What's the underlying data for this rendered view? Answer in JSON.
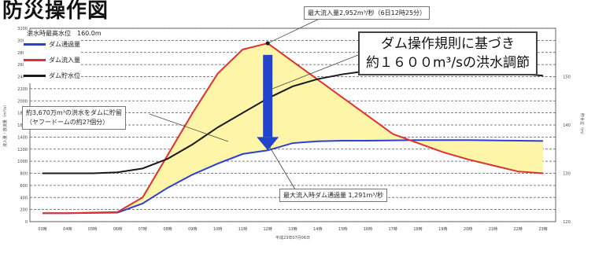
{
  "title": "防災操作図",
  "callouts": {
    "max_inflow": "最大流入量2,952m³/秒（6日12時25分）",
    "flood_level": "洪水時最高水位　160.0m",
    "storage": "約3,670万m³の洪水をダムに貯留",
    "storage_sub": "（ヤフードームの約2?個分）",
    "max_outflow": "最大流入時ダム通過量 1,291m³/秒",
    "big_box_line1": "ダム操作規則に基づき",
    "big_box_line2": "約１６００m³/sの洪水調節"
  },
  "legend": [
    {
      "label": "ダム通過量",
      "color": "#2b3fd6"
    },
    {
      "label": "ダム流入量",
      "color": "#e03030"
    },
    {
      "label": "ダム貯水位",
      "color": "#1a1a1a"
    }
  ],
  "colors": {
    "fill": "#fff5a8",
    "arrow": "#2244cc",
    "grid": "#555555"
  },
  "chart_data": {
    "type": "line",
    "x": [
      "03時",
      "04時",
      "05時",
      "06時",
      "07時",
      "08時",
      "09時",
      "10時",
      "11時",
      "12時",
      "13時",
      "14時",
      "15時",
      "16時",
      "17時",
      "18時",
      "19時",
      "20時",
      "21時",
      "22時",
      "23時"
    ],
    "xlabel": "平成23年07月06日",
    "ylabel": "流入量・放流量（m³/s）",
    "ylabel_right": "貯水位（m）",
    "ylim": [
      0,
      3200
    ],
    "ylim_right": [
      120,
      160
    ],
    "yticks": [
      0,
      200,
      400,
      600,
      800,
      1000,
      1200,
      1400,
      1600,
      1800,
      2000,
      2200,
      2400,
      2600,
      2800,
      3000,
      3200
    ],
    "yticks_right": [
      120,
      130,
      140,
      150
    ],
    "series": [
      {
        "name": "ダム通過量",
        "axis": "left",
        "values": [
          140,
          140,
          145,
          150,
          300,
          560,
          780,
          960,
          1120,
          1180,
          1300,
          1330,
          1340,
          1340,
          1345,
          1350,
          1350,
          1350,
          1345,
          1340,
          1335
        ]
      },
      {
        "name": "ダム流入量",
        "axis": "left",
        "values": [
          140,
          140,
          150,
          160,
          400,
          1100,
          1800,
          2450,
          2850,
          2952,
          2650,
          2350,
          2050,
          1750,
          1450,
          1300,
          1150,
          1030,
          930,
          830,
          800
        ]
      },
      {
        "name": "ダム貯水位",
        "axis": "right",
        "values": [
          130.0,
          130.0,
          130.0,
          130.2,
          131.0,
          133.0,
          136.0,
          139.5,
          142.5,
          145.5,
          148.0,
          149.5,
          150.5,
          151.2,
          151.6,
          151.8,
          151.8,
          151.6,
          151.2,
          150.6,
          150.2
        ]
      }
    ],
    "annotations": [
      {
        "text": "最大流入量2,952m³/秒（6日12時25分）",
        "x": "12時",
        "y": 2952
      },
      {
        "text": "最大流入時ダム通過量 1,291m³/秒",
        "x": "12時",
        "y": 1291
      }
    ],
    "grid": true
  }
}
